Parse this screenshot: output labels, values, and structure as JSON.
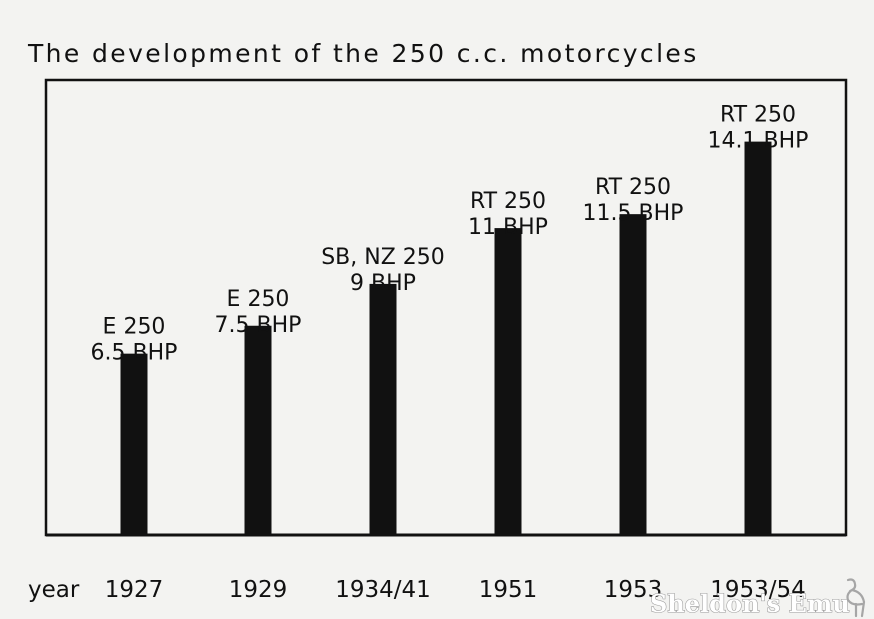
{
  "chart_data": {
    "type": "bar",
    "title": "The development of the 250 c.c. motorcycles",
    "xlabel": "year",
    "ylabel": "",
    "categories": [
      "1927",
      "1929",
      "1934/41",
      "1951",
      "1953",
      "1953/54"
    ],
    "series": [
      {
        "values": [
          6.5,
          7.5,
          9,
          11,
          11.5,
          14.1
        ]
      }
    ],
    "bar_labels": [
      {
        "model": "E 250",
        "power": "6.5 BHP"
      },
      {
        "model": "E 250",
        "power": "7.5 BHP"
      },
      {
        "model": "SB, NZ 250",
        "power": "9 BHP"
      },
      {
        "model": "RT 250",
        "power": "11 BHP"
      },
      {
        "model": "RT 250",
        "power": "11.5 BHP"
      },
      {
        "model": "RT 250",
        "power": "14.1 BHP"
      }
    ],
    "ylim": [
      0,
      15
    ],
    "grid": false,
    "legend": "none",
    "bar_color": "#111111"
  },
  "watermark": "Sheldon's Emu"
}
